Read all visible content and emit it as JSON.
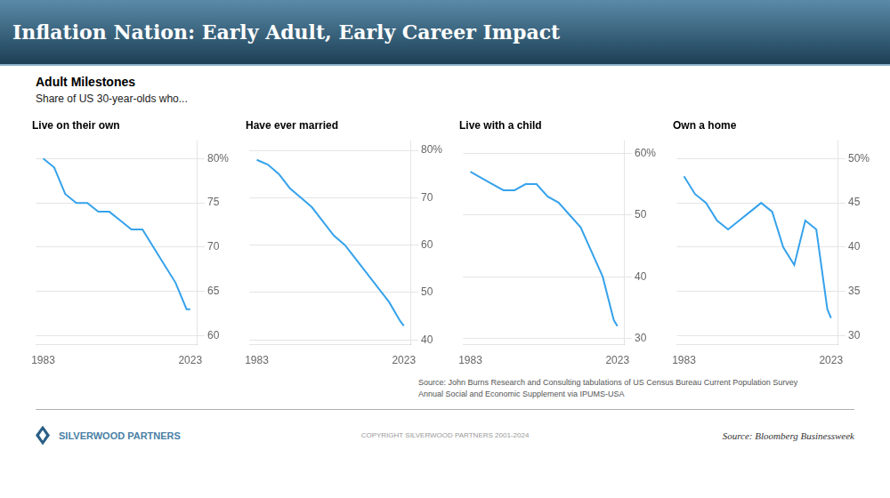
{
  "title": "Inflation Nation: Early Adult, Early Career Impact",
  "subtitle": [
    "Adult Milestones",
    "Share of US 30-year-olds who..."
  ],
  "annotations": [
    "Source: John Burns Research and Consulting tabulations of US Census Bureau Current Population Survey\nAnnual Social and Economic Supplement via IPUMS-USA",
    "SILVERWOOD PARTNERS",
    "COPYRIGHT SILVERWOOD PARTNERS 2001-2024",
    "Source: Bloomberg Businessweek"
  ],
  "chart_data": [
    {
      "type": "line",
      "title": "Live on their own",
      "x": [
        1983,
        1986,
        1989,
        1992,
        1995,
        1998,
        2001,
        2004,
        2007,
        2010,
        2013,
        2016,
        2019,
        2022,
        2023
      ],
      "values": [
        80,
        79,
        76,
        75,
        75,
        74,
        74,
        73,
        72,
        72,
        70,
        68,
        66,
        63,
        63
      ],
      "xlim": [
        1981,
        2025
      ],
      "xticks": [
        1983,
        2023
      ],
      "ylim": [
        59,
        82
      ],
      "yticks": [
        60,
        65,
        70,
        75,
        {
          "value": 80,
          "label": "80%"
        }
      ],
      "grid": "y"
    },
    {
      "type": "line",
      "title": "Have ever married",
      "x": [
        1983,
        1986,
        1989,
        1992,
        1995,
        1998,
        2001,
        2004,
        2007,
        2010,
        2013,
        2016,
        2019,
        2022,
        2023
      ],
      "values": [
        78,
        77,
        75,
        72,
        70,
        68,
        65,
        62,
        60,
        57,
        54,
        51,
        48,
        44,
        43
      ],
      "xlim": [
        1981,
        2025
      ],
      "xticks": [
        1983,
        2023
      ],
      "ylim": [
        39,
        82
      ],
      "yticks": [
        40,
        50,
        60,
        70,
        {
          "value": 80,
          "label": "80%"
        }
      ],
      "grid": "y"
    },
    {
      "type": "line",
      "title": "Live with a child",
      "x": [
        1983,
        1986,
        1989,
        1992,
        1995,
        1998,
        2001,
        2004,
        2007,
        2010,
        2013,
        2016,
        2019,
        2022,
        2023
      ],
      "values": [
        57,
        56,
        55,
        54,
        54,
        55,
        55,
        53,
        52,
        50,
        48,
        44,
        40,
        33,
        32
      ],
      "xlim": [
        1981,
        2025
      ],
      "xticks": [
        1983,
        2023
      ],
      "ylim": [
        29,
        62
      ],
      "yticks": [
        30,
        40,
        50,
        {
          "value": 60,
          "label": "60%"
        }
      ],
      "grid": "y"
    },
    {
      "type": "line",
      "title": "Own a home",
      "x": [
        1983,
        1986,
        1989,
        1992,
        1995,
        1998,
        2001,
        2004,
        2007,
        2010,
        2013,
        2016,
        2019,
        2022,
        2023
      ],
      "values": [
        48,
        46,
        45,
        43,
        42,
        43,
        44,
        45,
        44,
        40,
        38,
        43,
        42,
        33,
        32
      ],
      "xlim": [
        1981,
        2025
      ],
      "xticks": [
        1983,
        2023
      ],
      "ylim": [
        29,
        52
      ],
      "yticks": [
        30,
        35,
        40,
        45,
        {
          "value": 50,
          "label": "50%"
        }
      ],
      "grid": "y"
    }
  ]
}
